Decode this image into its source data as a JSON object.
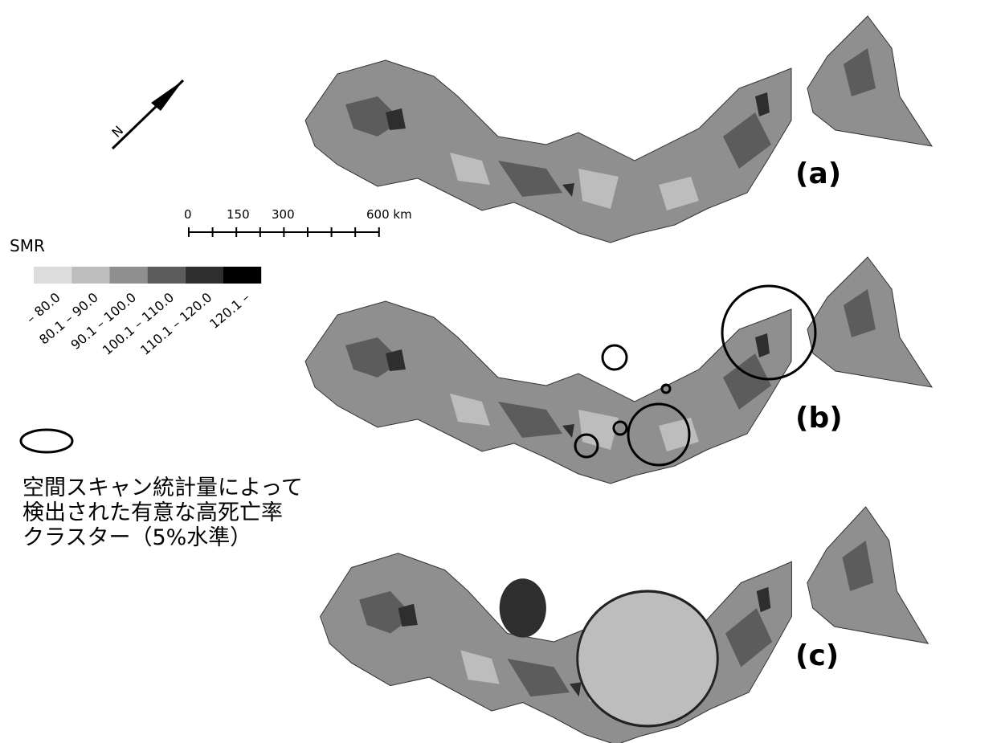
{
  "north_arrow": "N",
  "scale_bar": {
    "labels": [
      "0",
      "150",
      "300",
      "600 km"
    ]
  },
  "legend": {
    "title": "SMR",
    "items": [
      {
        "label": "– 80.0",
        "color": "#dcdcdc"
      },
      {
        "label": "80.1 – 90.0",
        "color": "#bdbdbd"
      },
      {
        "label": "90.1 – 100.0",
        "color": "#8f8f8f"
      },
      {
        "label": "100.1 – 110.0",
        "color": "#5c5c5c"
      },
      {
        "label": "110.1 – 120.0",
        "color": "#2e2e2e"
      },
      {
        "label": "120.1 –",
        "color": "#000000"
      }
    ]
  },
  "cluster_legend": {
    "lines": [
      "空間スキャン統計量によって",
      "検出された有意な高死亡率",
      "クラスター（5%水準）"
    ]
  },
  "panels": [
    {
      "label": "(a)"
    },
    {
      "label": "(b)"
    },
    {
      "label": "(c)"
    }
  ]
}
